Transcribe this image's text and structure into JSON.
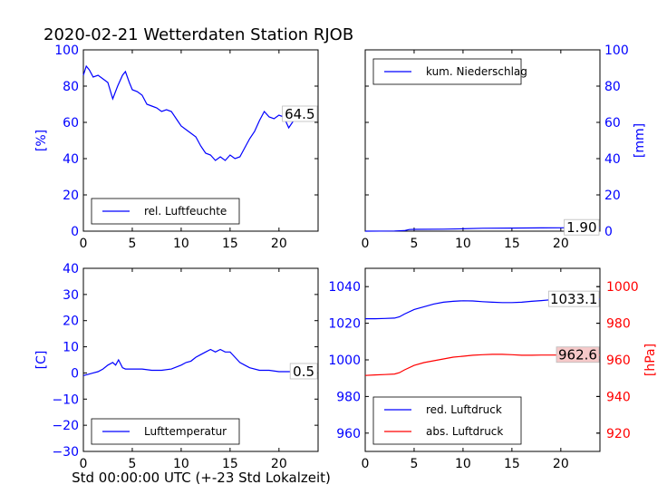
{
  "page_title": "2020-02-21 Wetterdaten Station RJOB",
  "footer_label": "Std 00:00:00 UTC (+-23 Std Lokalzeit)",
  "colors": {
    "blue": "#0000ff",
    "red": "#ff0000",
    "black": "#000000"
  },
  "chart_data": [
    {
      "id": "humidity",
      "type": "line",
      "xlim": [
        0,
        24
      ],
      "ylim": [
        0,
        100
      ],
      "xticks": [
        0,
        5,
        10,
        15,
        20
      ],
      "yticks": [
        0,
        20,
        40,
        60,
        80,
        100
      ],
      "ylabel": "[%]",
      "ylabel_color": "#0000ff",
      "ytick_color": "#0000ff",
      "yaxis_side": "left",
      "show_xtick_labels": true,
      "series": [
        {
          "name": "rel. Luftfeuchte",
          "color": "#0000ff",
          "x": [
            0,
            0.3,
            0.6,
            1,
            1.5,
            2,
            2.5,
            3,
            3.5,
            4,
            4.3,
            4.7,
            5,
            5.5,
            6,
            6.5,
            7,
            7.5,
            8,
            8.5,
            9,
            9.5,
            10,
            10.5,
            11,
            11.5,
            12,
            12.5,
            13,
            13.5,
            14,
            14.5,
            15,
            15.5,
            16,
            16.5,
            17,
            17.5,
            18,
            18.5,
            19,
            19.5,
            20,
            20.5,
            21,
            21.5,
            22,
            22.5,
            23,
            23.5
          ],
          "y": [
            86,
            91,
            89,
            85,
            86,
            84,
            82,
            73,
            80,
            86,
            88,
            82,
            78,
            77,
            75,
            70,
            69,
            68,
            66,
            67,
            66,
            62,
            58,
            56,
            54,
            52,
            47,
            43,
            42,
            39,
            41,
            39,
            42,
            40,
            41,
            46,
            51,
            55,
            61,
            66,
            63,
            62,
            64,
            63,
            57,
            61,
            64,
            62,
            61,
            64.5
          ]
        }
      ],
      "value_label": "64.5",
      "legend_position": "lower-left"
    },
    {
      "id": "precipitation",
      "type": "line",
      "xlim": [
        0,
        24
      ],
      "ylim": [
        0,
        100
      ],
      "xticks": [
        0,
        5,
        10,
        15,
        20
      ],
      "yticks": [
        0,
        20,
        40,
        60,
        80,
        100
      ],
      "ylabel": "[mm]",
      "ylabel_color": "#0000ff",
      "ytick_color": "#0000ff",
      "yaxis_side": "right",
      "show_xtick_labels": true,
      "series": [
        {
          "name": "kum. Niederschlag",
          "color": "#0000ff",
          "x": [
            0,
            3,
            4,
            4.5,
            5,
            8,
            10,
            12,
            15,
            18,
            20,
            22,
            24
          ],
          "y": [
            0,
            0.1,
            0.3,
            0.9,
            1.0,
            1.1,
            1.3,
            1.6,
            1.7,
            1.8,
            1.85,
            1.9,
            1.9
          ]
        }
      ],
      "value_label": "1.90",
      "legend_position": "upper-left"
    },
    {
      "id": "temperature",
      "type": "line",
      "xlim": [
        0,
        24
      ],
      "ylim": [
        -30,
        40
      ],
      "xticks": [
        0,
        5,
        10,
        15,
        20
      ],
      "yticks": [
        -30,
        -20,
        -10,
        0,
        10,
        20,
        30,
        40
      ],
      "ylabel": "[C]",
      "ylabel_color": "#0000ff",
      "ytick_color": "#0000ff",
      "yaxis_side": "left",
      "show_xtick_labels": true,
      "series": [
        {
          "name": "Lufttemperatur",
          "color": "#0000ff",
          "x": [
            0,
            0.5,
            1,
            1.5,
            2,
            2.5,
            3,
            3.3,
            3.6,
            4,
            4.3,
            4.8,
            5.5,
            6,
            7,
            8,
            9,
            10,
            10.5,
            11,
            11.5,
            12,
            12.5,
            13,
            13.5,
            14,
            14.5,
            15,
            15.5,
            16,
            16.5,
            17,
            18,
            19,
            20,
            21,
            22,
            23,
            23.5
          ],
          "y": [
            -1,
            -0.5,
            0,
            0.5,
            1.5,
            3,
            4,
            3,
            5,
            2,
            1.5,
            1.5,
            1.5,
            1.5,
            1,
            1,
            1.5,
            3,
            4,
            4.5,
            6,
            7,
            8,
            9,
            8,
            9,
            8,
            8,
            6,
            4,
            3,
            2,
            1,
            1,
            0.5,
            0.5,
            0.5,
            0.5,
            0.5
          ]
        }
      ],
      "value_label": "0.5",
      "legend_position": "lower-left"
    },
    {
      "id": "pressure",
      "type": "line",
      "xlim": [
        0,
        24
      ],
      "ylim": [
        950,
        1050
      ],
      "ylim_right": [
        910,
        1010
      ],
      "xticks": [
        0,
        5,
        10,
        15,
        20
      ],
      "yticks": [
        960,
        980,
        1000,
        1020,
        1040
      ],
      "yticks_right": [
        920,
        940,
        960,
        980,
        1000
      ],
      "ylabel": "",
      "ylabel_right": "[hPa]",
      "ylabel_color": "#ff0000",
      "ytick_color": "#0000ff",
      "ytick_right_color": "#ff0000",
      "yaxis_side": "both",
      "show_xtick_labels": true,
      "series": [
        {
          "name": "red. Luftdruck",
          "color": "#0000ff",
          "axis": "left",
          "x": [
            0,
            1,
            2,
            3,
            3.5,
            4,
            5,
            6,
            7,
            8,
            9,
            10,
            11,
            12,
            13,
            14,
            15,
            16,
            17,
            18,
            19,
            20,
            21,
            22,
            23,
            24
          ],
          "y": [
            1022.5,
            1022.5,
            1022.6,
            1022.8,
            1023.5,
            1025,
            1027.5,
            1029,
            1030.5,
            1031.5,
            1032,
            1032.3,
            1032.2,
            1031.8,
            1031.5,
            1031.3,
            1031.3,
            1031.5,
            1032,
            1032.4,
            1032.8,
            1033,
            1033.1,
            1033.1,
            1033.1,
            1033.1
          ]
        },
        {
          "name": "abs. Luftdruck",
          "color": "#ff0000",
          "axis": "right",
          "x": [
            0,
            1,
            2,
            3,
            3.5,
            4,
            5,
            6,
            7,
            8,
            9,
            10,
            11,
            12,
            13,
            14,
            15,
            16,
            17,
            18,
            19,
            20,
            21,
            22,
            23,
            24
          ],
          "y": [
            951.5,
            951.8,
            952,
            952.3,
            953,
            954.5,
            957,
            958.5,
            959.5,
            960.5,
            961.5,
            962,
            962.5,
            962.8,
            963,
            963,
            962.8,
            962.5,
            962.5,
            962.6,
            962.6,
            962.6,
            962.6,
            962.6,
            962.6,
            962.6
          ]
        }
      ],
      "value_labels": [
        "1033.1",
        "962.6"
      ],
      "legend_position": "lower-left"
    }
  ]
}
